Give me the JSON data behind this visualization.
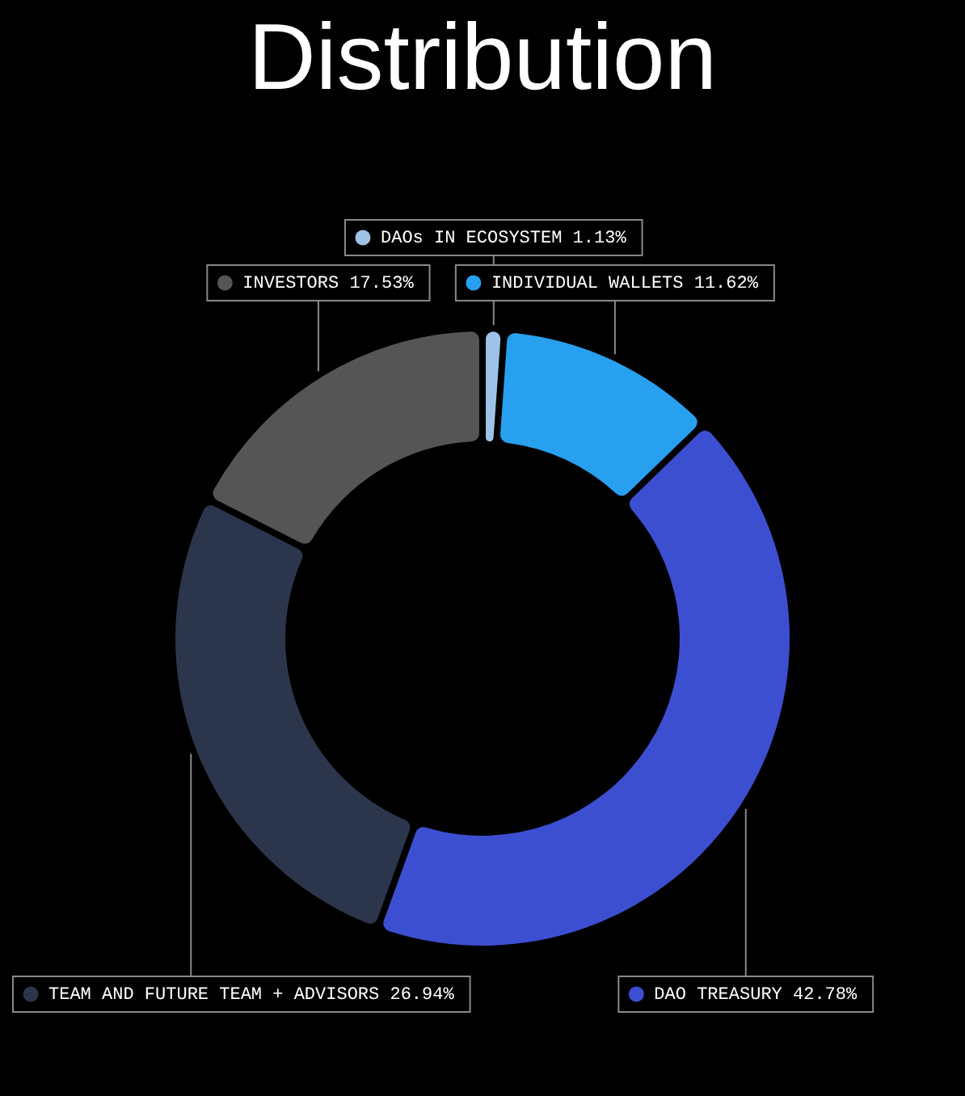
{
  "chart_data": {
    "type": "donut",
    "title": "Distribution",
    "categories": [
      "DAOs IN ECOSYSTEM",
      "INDIVIDUAL WALLETS",
      "DAO TREASURY",
      "TEAM AND FUTURE TEAM + ADVISORS",
      "INVESTORS"
    ],
    "values": [
      1.13,
      11.62,
      42.78,
      26.94,
      17.53
    ],
    "value_labels": [
      "1.13%",
      "11.62%",
      "42.78%",
      "26.94%",
      "17.53%"
    ],
    "colors": [
      "#9ec3e6",
      "#28a0f0",
      "#3d4fd1",
      "#2b364c",
      "#555555"
    ],
    "legend": "top left"
  }
}
